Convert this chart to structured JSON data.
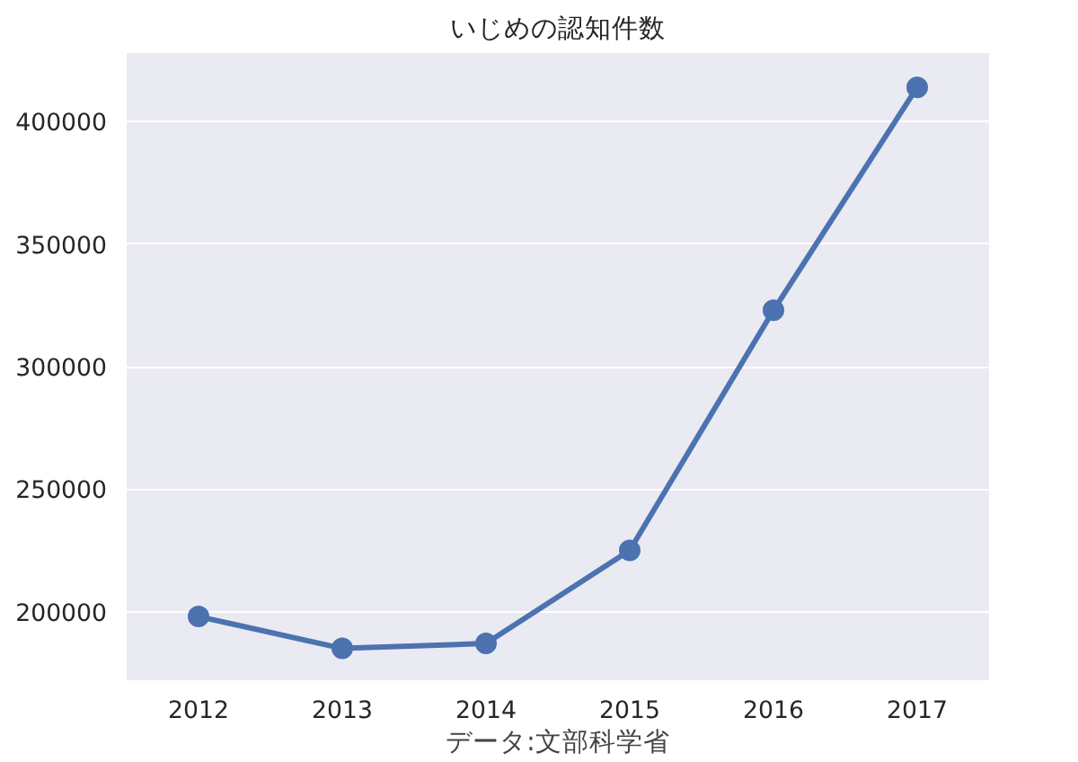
{
  "chart_data": {
    "type": "line",
    "title": "いじめの認知件数",
    "xlabel": "データ:文部科学省",
    "categories": [
      "2012",
      "2013",
      "2014",
      "2015",
      "2016",
      "2017"
    ],
    "series": [
      {
        "color": "#4c72b0",
        "values": [
          198000,
          185000,
          187000,
          225000,
          323000,
          414000
        ]
      }
    ],
    "ylim": [
      172000,
      428000
    ],
    "yticks": [
      200000,
      250000,
      300000,
      350000,
      400000
    ],
    "grid": "y",
    "marker": "circle",
    "line_style": "solid"
  }
}
